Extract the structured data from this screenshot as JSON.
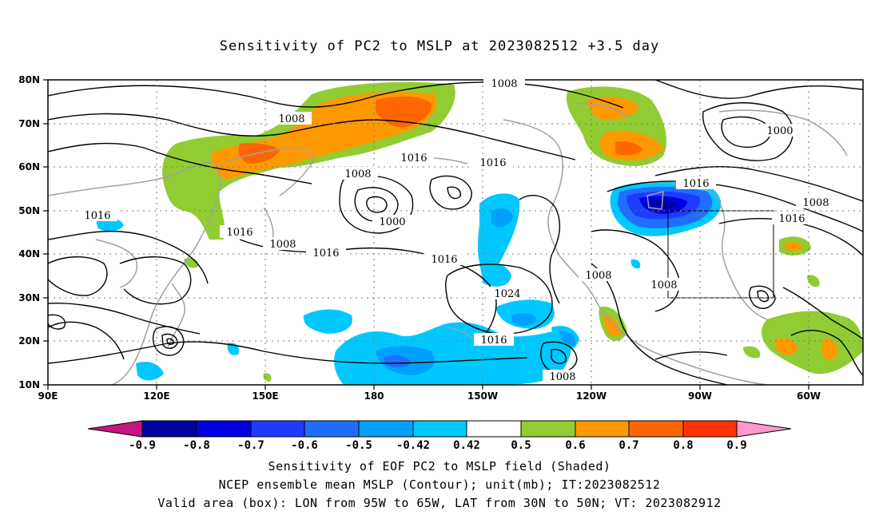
{
  "title": "Sensitivity of PC2 to MSLP at 2023082512 +3.5 day",
  "axes": {
    "y_labels": [
      "80N",
      "70N",
      "60N",
      "50N",
      "40N",
      "30N",
      "20N",
      "10N"
    ],
    "x_labels": [
      "90E",
      "120E",
      "150E",
      "180",
      "150W",
      "120W",
      "90W",
      "60W"
    ]
  },
  "contour_labels": [
    "1008",
    "1008",
    "1016",
    "1016",
    "1008",
    "1000",
    "1016",
    "1016",
    "1008",
    "1016",
    "1016",
    "1024",
    "1008",
    "1008",
    "1016",
    "1008",
    "1000",
    "1016",
    "1008",
    "1016"
  ],
  "colorbar": {
    "labels": [
      "-0.9",
      "-0.8",
      "-0.7",
      "-0.6",
      "-0.5",
      "-0.42",
      "0.42",
      "0.5",
      "0.6",
      "0.7",
      "0.8",
      "0.9"
    ],
    "colors": [
      "#c71585",
      "#0000a0",
      "#0000e0",
      "#1e3cff",
      "#1e6eff",
      "#00a0ff",
      "#00c8ff",
      "#ffffff",
      "#90cc32",
      "#ff9900",
      "#ff6600",
      "#ff3300",
      "#ff0000",
      "#ff99cc"
    ]
  },
  "captions": {
    "line1": "Sensitivity of EOF PC2 to MSLP field (Shaded)",
    "line2": "NCEP ensemble mean MSLP (Contour); unit(mb); IT:2023082512",
    "line3": "Valid area (box): LON from 95W to 65W, LAT from 30N to 50N; VT: 2023082912"
  }
}
